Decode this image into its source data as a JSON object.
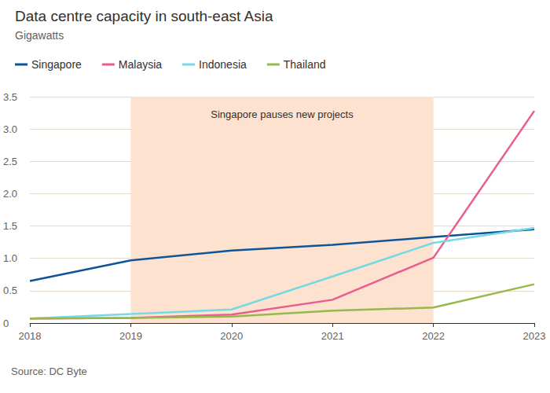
{
  "chart_data": {
    "type": "line",
    "title": "Data centre capacity in south-east Asia",
    "subtitle": "Gigawatts",
    "source": "Source: DC Byte",
    "categories": [
      "2018",
      "2019",
      "2020",
      "2021",
      "2022",
      "2023"
    ],
    "series": [
      {
        "name": "Singapore",
        "color": "#0f5499",
        "values": [
          0.65,
          0.97,
          1.12,
          1.21,
          1.33,
          1.45
        ]
      },
      {
        "name": "Malaysia",
        "color": "#e95d8c",
        "values": [
          0.07,
          0.08,
          0.13,
          0.36,
          1.01,
          3.28
        ]
      },
      {
        "name": "Indonesia",
        "color": "#75d9e6",
        "values": [
          0.07,
          0.14,
          0.21,
          0.72,
          1.24,
          1.47
        ]
      },
      {
        "name": "Thailand",
        "color": "#96b84c",
        "values": [
          0.07,
          0.08,
          0.1,
          0.19,
          0.24,
          0.6
        ]
      }
    ],
    "ylim": [
      0,
      3.5
    ],
    "yticks": [
      0,
      0.5,
      {
        "value": 1,
        "label": "1.0"
      },
      1.5,
      {
        "value": 2,
        "label": "2.0"
      },
      2.5,
      {
        "value": 3,
        "label": "3.0"
      },
      3.5
    ],
    "grid": true,
    "legend": "top-left",
    "annotations": [
      {
        "text": "Singapore pauses new projects",
        "x_start": "2019",
        "x_end": "2022"
      }
    ]
  }
}
